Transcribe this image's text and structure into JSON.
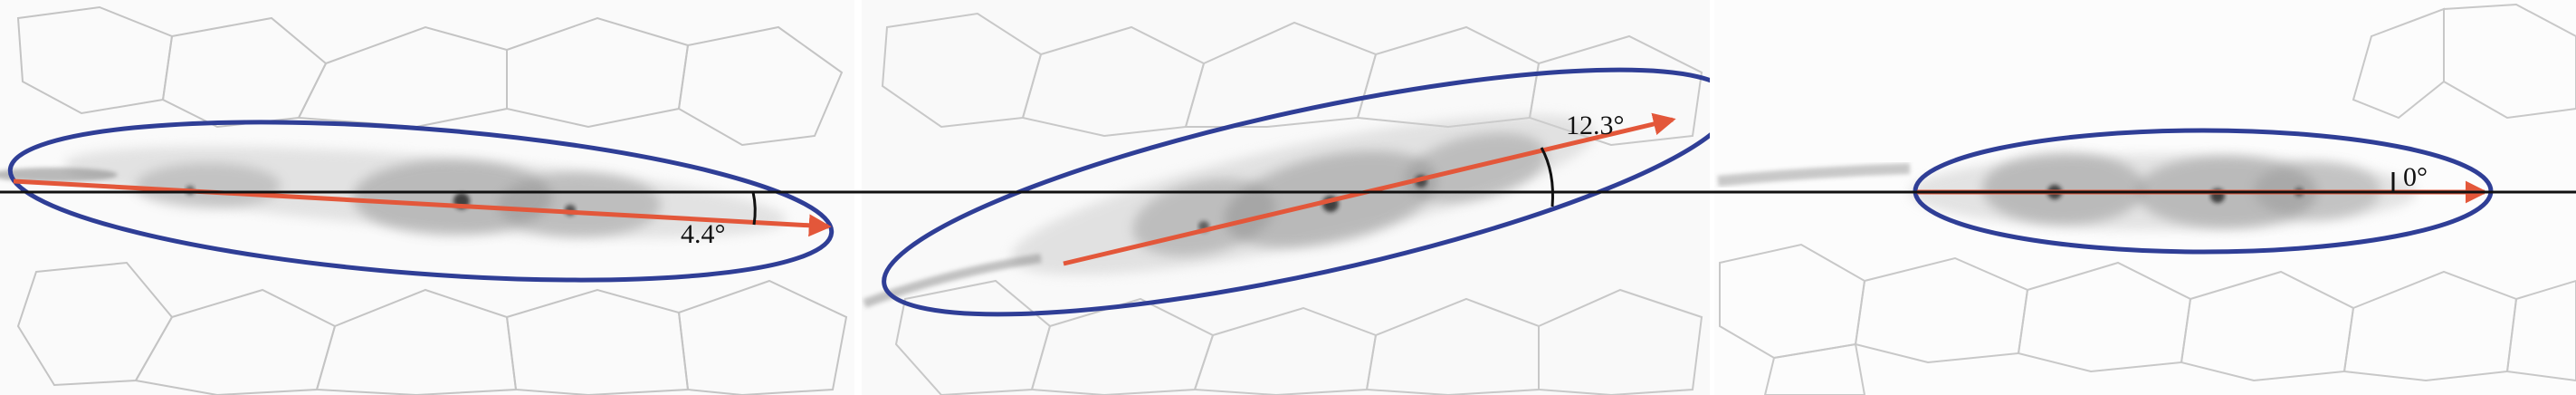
{
  "panels": [
    {
      "angle_label": "4.4°"
    },
    {
      "angle_label": "12.3°"
    },
    {
      "angle_label": "0°"
    }
  ],
  "colors": {
    "ellipse": "#2f3e96",
    "major_axis_arrow": "#e3573a",
    "reference_line": "#111111",
    "angle_arc": "#111111",
    "cell_outlines": "#bdbdbd",
    "cluster_texture": "#3a3a3a"
  }
}
